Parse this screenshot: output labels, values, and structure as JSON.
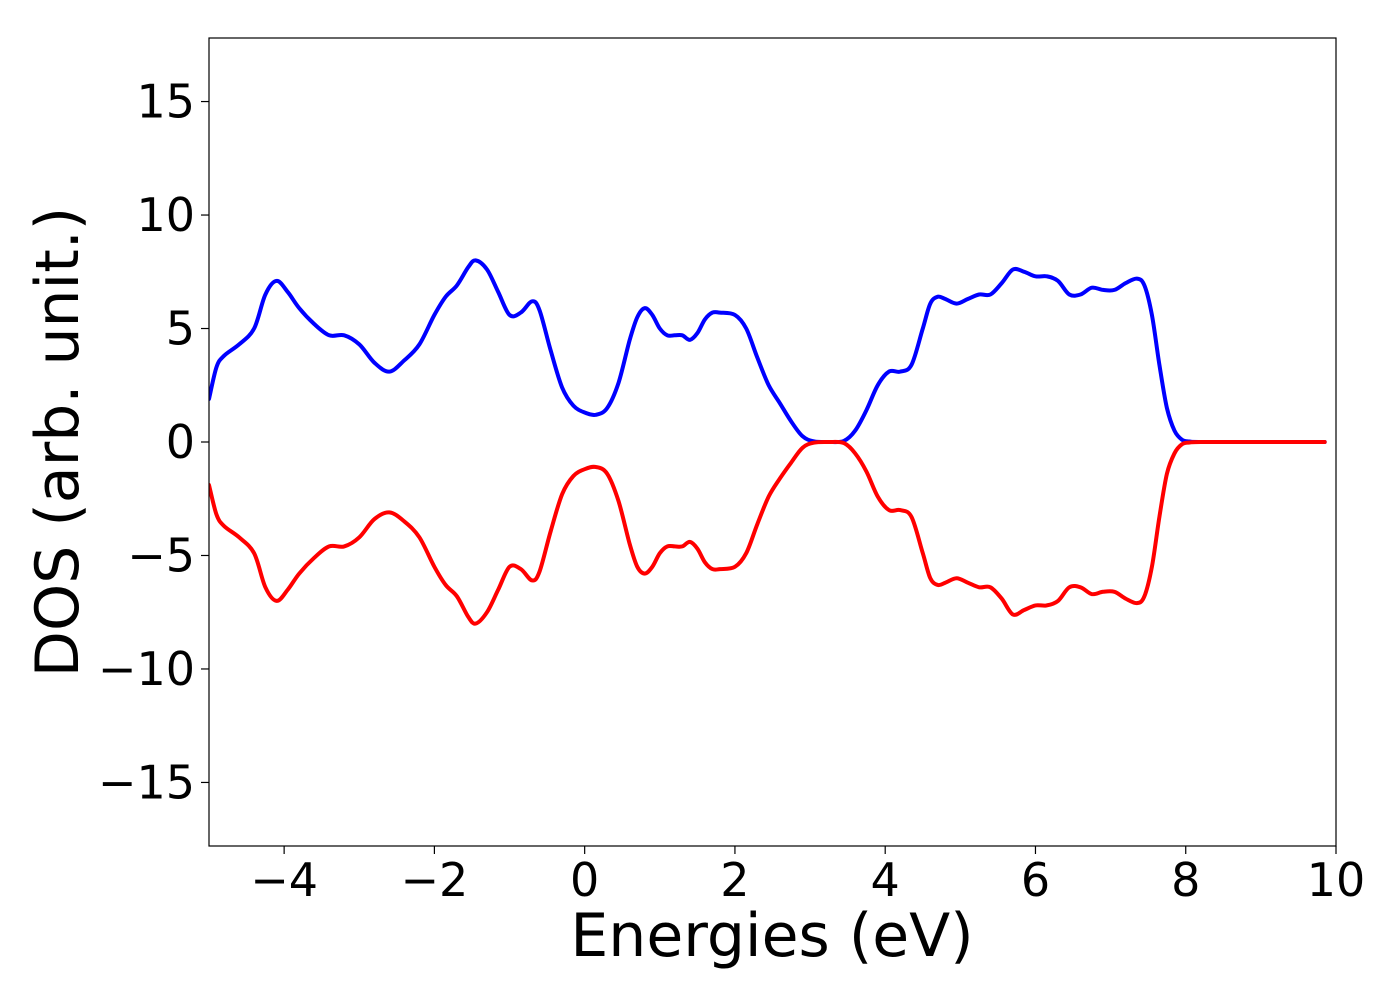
{
  "chart_data": {
    "type": "line",
    "title": "",
    "xlabel": "Energies (eV)",
    "ylabel": "DOS (arb. unit.)",
    "xlim": [
      -5,
      10
    ],
    "ylim": [
      -17.8,
      17.8
    ],
    "grid": false,
    "legend": "none",
    "x_ticks": [
      -4,
      -2,
      0,
      2,
      4,
      6,
      8,
      10
    ],
    "x_tick_labels": [
      "−4",
      "−2",
      "0",
      "2",
      "4",
      "6",
      "8",
      "10"
    ],
    "y_ticks": [
      -15,
      -10,
      -5,
      0,
      5,
      10,
      15
    ],
    "y_tick_labels": [
      "−15",
      "−10",
      "−5",
      "0",
      "5",
      "10",
      "15"
    ],
    "series": [
      {
        "color": "#0000ff",
        "points": [
          [
            -5.0,
            1.9
          ],
          [
            -4.9,
            3.3
          ],
          [
            -4.8,
            3.8
          ],
          [
            -4.6,
            4.3
          ],
          [
            -4.4,
            5.0
          ],
          [
            -4.25,
            6.5
          ],
          [
            -4.1,
            7.1
          ],
          [
            -3.95,
            6.6
          ],
          [
            -3.8,
            5.9
          ],
          [
            -3.6,
            5.2
          ],
          [
            -3.4,
            4.7
          ],
          [
            -3.2,
            4.7
          ],
          [
            -3.0,
            4.3
          ],
          [
            -2.8,
            3.5
          ],
          [
            -2.6,
            3.1
          ],
          [
            -2.4,
            3.6
          ],
          [
            -2.2,
            4.3
          ],
          [
            -2.0,
            5.6
          ],
          [
            -1.85,
            6.4
          ],
          [
            -1.7,
            6.9
          ],
          [
            -1.55,
            7.7
          ],
          [
            -1.45,
            8.0
          ],
          [
            -1.3,
            7.6
          ],
          [
            -1.15,
            6.6
          ],
          [
            -1.0,
            5.6
          ],
          [
            -0.85,
            5.7
          ],
          [
            -0.7,
            6.2
          ],
          [
            -0.6,
            5.8
          ],
          [
            -0.45,
            4.0
          ],
          [
            -0.3,
            2.4
          ],
          [
            -0.15,
            1.6
          ],
          [
            0.0,
            1.3
          ],
          [
            0.15,
            1.2
          ],
          [
            0.3,
            1.5
          ],
          [
            0.45,
            2.6
          ],
          [
            0.6,
            4.5
          ],
          [
            0.7,
            5.5
          ],
          [
            0.8,
            5.9
          ],
          [
            0.9,
            5.6
          ],
          [
            1.0,
            5.0
          ],
          [
            1.1,
            4.7
          ],
          [
            1.2,
            4.7
          ],
          [
            1.3,
            4.7
          ],
          [
            1.4,
            4.5
          ],
          [
            1.5,
            4.8
          ],
          [
            1.6,
            5.4
          ],
          [
            1.7,
            5.7
          ],
          [
            1.8,
            5.7
          ],
          [
            2.0,
            5.6
          ],
          [
            2.15,
            5.0
          ],
          [
            2.3,
            3.7
          ],
          [
            2.45,
            2.5
          ],
          [
            2.6,
            1.7
          ],
          [
            2.75,
            0.9
          ],
          [
            2.9,
            0.25
          ],
          [
            3.05,
            0.03
          ],
          [
            3.25,
            0.0
          ],
          [
            3.45,
            0.05
          ],
          [
            3.6,
            0.5
          ],
          [
            3.75,
            1.4
          ],
          [
            3.9,
            2.5
          ],
          [
            4.05,
            3.1
          ],
          [
            4.2,
            3.1
          ],
          [
            4.35,
            3.4
          ],
          [
            4.5,
            5.0
          ],
          [
            4.6,
            6.1
          ],
          [
            4.7,
            6.4
          ],
          [
            4.8,
            6.3
          ],
          [
            4.95,
            6.1
          ],
          [
            5.1,
            6.3
          ],
          [
            5.25,
            6.5
          ],
          [
            5.4,
            6.5
          ],
          [
            5.55,
            7.0
          ],
          [
            5.7,
            7.6
          ],
          [
            5.85,
            7.5
          ],
          [
            6.0,
            7.3
          ],
          [
            6.15,
            7.3
          ],
          [
            6.3,
            7.1
          ],
          [
            6.45,
            6.5
          ],
          [
            6.6,
            6.5
          ],
          [
            6.75,
            6.8
          ],
          [
            6.9,
            6.7
          ],
          [
            7.05,
            6.7
          ],
          [
            7.2,
            7.0
          ],
          [
            7.35,
            7.2
          ],
          [
            7.45,
            6.9
          ],
          [
            7.55,
            5.6
          ],
          [
            7.65,
            3.4
          ],
          [
            7.75,
            1.5
          ],
          [
            7.85,
            0.5
          ],
          [
            7.95,
            0.1
          ],
          [
            8.05,
            0.02
          ],
          [
            8.2,
            0.0
          ],
          [
            9.0,
            0.0
          ],
          [
            9.85,
            0.0
          ]
        ]
      },
      {
        "color": "#ff0000",
        "points": [
          [
            -5.0,
            -1.9
          ],
          [
            -4.9,
            -3.2
          ],
          [
            -4.8,
            -3.7
          ],
          [
            -4.6,
            -4.2
          ],
          [
            -4.4,
            -4.9
          ],
          [
            -4.25,
            -6.4
          ],
          [
            -4.1,
            -7.0
          ],
          [
            -3.95,
            -6.5
          ],
          [
            -3.8,
            -5.8
          ],
          [
            -3.6,
            -5.1
          ],
          [
            -3.4,
            -4.6
          ],
          [
            -3.2,
            -4.6
          ],
          [
            -3.0,
            -4.2
          ],
          [
            -2.8,
            -3.4
          ],
          [
            -2.6,
            -3.1
          ],
          [
            -2.4,
            -3.5
          ],
          [
            -2.2,
            -4.2
          ],
          [
            -2.0,
            -5.5
          ],
          [
            -1.85,
            -6.3
          ],
          [
            -1.7,
            -6.8
          ],
          [
            -1.55,
            -7.7
          ],
          [
            -1.45,
            -8.0
          ],
          [
            -1.3,
            -7.5
          ],
          [
            -1.15,
            -6.5
          ],
          [
            -1.0,
            -5.5
          ],
          [
            -0.85,
            -5.6
          ],
          [
            -0.7,
            -6.1
          ],
          [
            -0.6,
            -5.7
          ],
          [
            -0.45,
            -3.9
          ],
          [
            -0.3,
            -2.3
          ],
          [
            -0.15,
            -1.5
          ],
          [
            0.0,
            -1.2
          ],
          [
            0.15,
            -1.1
          ],
          [
            0.3,
            -1.4
          ],
          [
            0.45,
            -2.6
          ],
          [
            0.6,
            -4.5
          ],
          [
            0.7,
            -5.5
          ],
          [
            0.8,
            -5.8
          ],
          [
            0.9,
            -5.5
          ],
          [
            1.0,
            -4.9
          ],
          [
            1.1,
            -4.6
          ],
          [
            1.2,
            -4.6
          ],
          [
            1.3,
            -4.6
          ],
          [
            1.4,
            -4.4
          ],
          [
            1.5,
            -4.7
          ],
          [
            1.6,
            -5.3
          ],
          [
            1.7,
            -5.6
          ],
          [
            1.8,
            -5.6
          ],
          [
            2.0,
            -5.5
          ],
          [
            2.15,
            -4.9
          ],
          [
            2.3,
            -3.6
          ],
          [
            2.45,
            -2.4
          ],
          [
            2.6,
            -1.6
          ],
          [
            2.75,
            -0.9
          ],
          [
            2.9,
            -0.25
          ],
          [
            3.05,
            -0.03
          ],
          [
            3.25,
            0.0
          ],
          [
            3.45,
            -0.05
          ],
          [
            3.6,
            -0.5
          ],
          [
            3.75,
            -1.3
          ],
          [
            3.9,
            -2.4
          ],
          [
            4.05,
            -3.0
          ],
          [
            4.2,
            -3.0
          ],
          [
            4.35,
            -3.3
          ],
          [
            4.5,
            -4.9
          ],
          [
            4.6,
            -6.0
          ],
          [
            4.7,
            -6.3
          ],
          [
            4.8,
            -6.2
          ],
          [
            4.95,
            -6.0
          ],
          [
            5.1,
            -6.2
          ],
          [
            5.25,
            -6.4
          ],
          [
            5.4,
            -6.4
          ],
          [
            5.55,
            -6.9
          ],
          [
            5.7,
            -7.6
          ],
          [
            5.85,
            -7.4
          ],
          [
            6.0,
            -7.2
          ],
          [
            6.15,
            -7.2
          ],
          [
            6.3,
            -7.0
          ],
          [
            6.45,
            -6.4
          ],
          [
            6.6,
            -6.4
          ],
          [
            6.75,
            -6.7
          ],
          [
            6.9,
            -6.6
          ],
          [
            7.05,
            -6.6
          ],
          [
            7.2,
            -6.9
          ],
          [
            7.35,
            -7.1
          ],
          [
            7.45,
            -6.8
          ],
          [
            7.55,
            -5.5
          ],
          [
            7.65,
            -3.3
          ],
          [
            7.75,
            -1.4
          ],
          [
            7.85,
            -0.5
          ],
          [
            7.95,
            -0.1
          ],
          [
            8.05,
            -0.02
          ],
          [
            8.2,
            0.0
          ],
          [
            9.0,
            0.0
          ],
          [
            9.85,
            0.0
          ]
        ]
      }
    ]
  }
}
